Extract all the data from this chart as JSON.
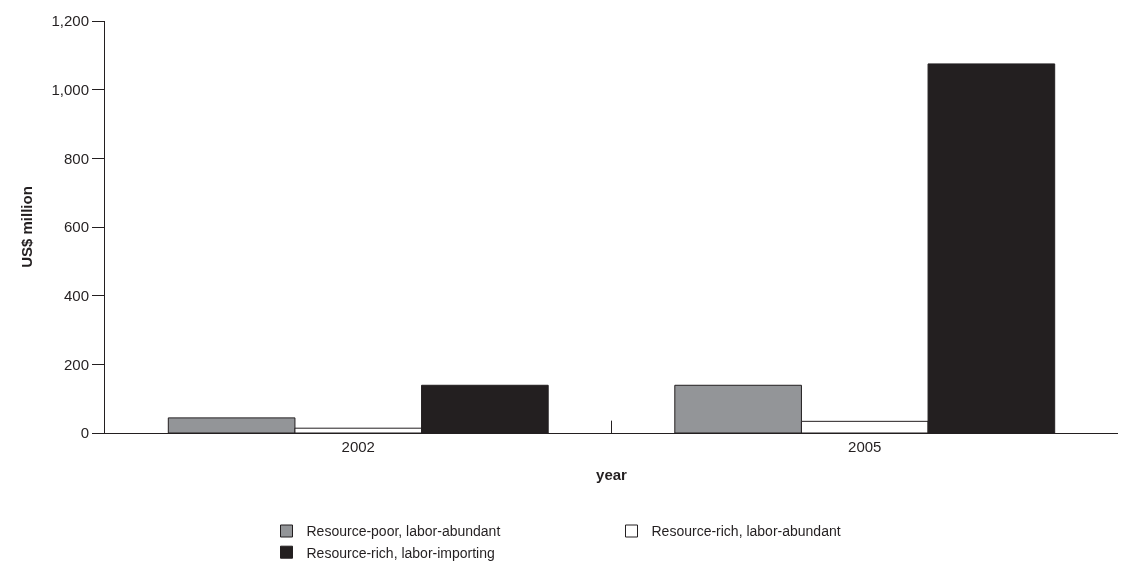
{
  "chart_data": {
    "type": "bar",
    "xlabel": "year",
    "ylabel": "US$ million",
    "categories": [
      "2002",
      "2005"
    ],
    "series": [
      {
        "name": "Resource-poor, labor-abundant",
        "color": "#939598",
        "values": [
          44,
          139
        ]
      },
      {
        "name": "Resource-rich, labor-abundant",
        "color": "#ffffff",
        "values": [
          14,
          34
        ]
      },
      {
        "name": "Resource-rich, labor-importing",
        "color": "#231f20",
        "values": [
          139,
          1075
        ]
      }
    ],
    "ylim": [
      0,
      1200
    ],
    "yticks": [
      0,
      {
        "value": 200,
        "label": "200"
      },
      {
        "value": 400,
        "label": "400"
      },
      {
        "value": 600,
        "label": "600"
      },
      {
        "value": 800,
        "label": "800"
      },
      {
        "value": 1000,
        "label": "1,000"
      },
      {
        "value": 1200,
        "label": "1,200"
      }
    ],
    "legend": "bottom"
  }
}
